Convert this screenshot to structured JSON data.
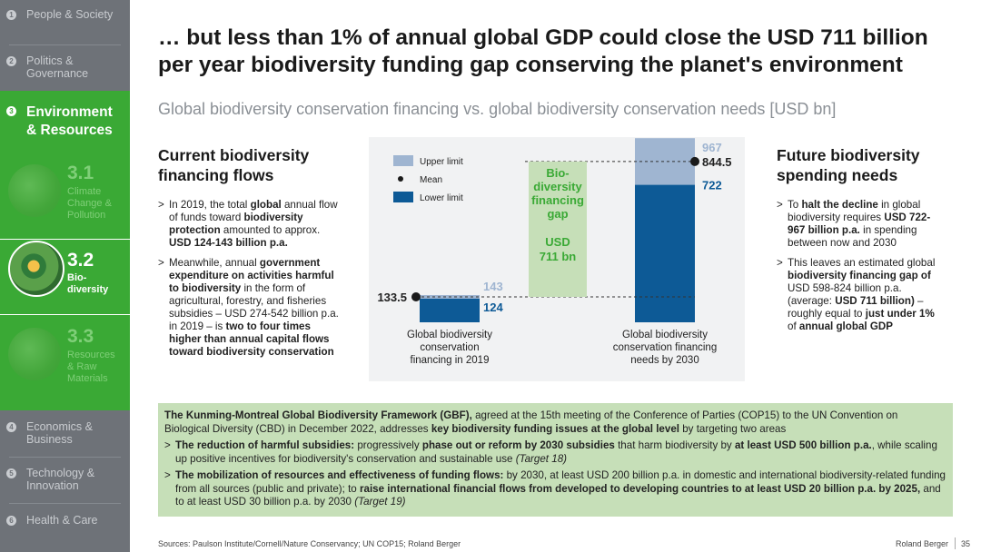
{
  "sidebar": {
    "items": [
      {
        "num": "1",
        "label": "People & Society"
      },
      {
        "num": "2",
        "label": "Politics & Governance"
      },
      {
        "num": "4",
        "label": "Economics & Business"
      },
      {
        "num": "5",
        "label": "Technology & Innovation"
      },
      {
        "num": "6",
        "label": "Health & Care"
      }
    ],
    "active_section": {
      "num": "3",
      "label_line1": "Environment",
      "label_line2": "& Resources"
    },
    "subsections": [
      {
        "num": "3.1",
        "line1": "Climate",
        "line2": "Change &",
        "line3": "Pollution"
      },
      {
        "num": "3.2",
        "line1": "Bio-",
        "line2": "diversity",
        "line3": ""
      },
      {
        "num": "3.3",
        "line1": "Resources",
        "line2": "& Raw",
        "line3": "Materials"
      }
    ]
  },
  "headline_line1": "… but less than 1% of annual global GDP could close the USD 711 billion",
  "headline_line2": "per year biodiversity funding gap conserving the planet's environment",
  "subtitle": "Global biodiversity conservation financing vs. global biodiversity conservation needs [USD bn]",
  "left": {
    "title_line1": "Current biodiversity",
    "title_line2": "financing flows"
  },
  "right": {
    "title_line1": "Future biodiversity",
    "title_line2": "spending needs"
  },
  "chart_data": {
    "type": "bar",
    "categories": [
      "Global biodiversity conservation financing in 2019",
      "Global biodiversity conservation financing needs by 2030"
    ],
    "category_labels": [
      [
        "Global biodiversity",
        "conservation",
        "financing in 2019"
      ],
      [
        "Global biodiversity",
        "conservation financing",
        "needs by 2030"
      ]
    ],
    "series": [
      {
        "name": "Lower limit",
        "values": [
          124,
          722
        ],
        "color": "#0d5a96"
      },
      {
        "name": "Upper limit",
        "values": [
          143,
          967
        ],
        "color": "#9fb5d1"
      },
      {
        "name": "Mean",
        "values": [
          133.5,
          844.5
        ],
        "color": "#1a1a1a"
      }
    ],
    "value_labels": {
      "lower": [
        "124",
        "722"
      ],
      "upper": [
        "143",
        "967"
      ],
      "mean": [
        "133.5",
        "844.5"
      ]
    },
    "gap_label": [
      "Bio-",
      "diversity",
      "financing",
      "gap"
    ],
    "gap_value": [
      "USD",
      "711 bn"
    ],
    "gap_color": "#c6dfb8",
    "ylim": [
      0,
      1000
    ],
    "legend_position": "top-left"
  },
  "gbf": {
    "framework": "The Kunming-Montreal Global Biodiversity Framework (GBF),",
    "intro_a": " agreed at the 15th meeting of the Conference of Parties (COP15) to the UN Convention on Biological Diversity (CBD) in December 2022, addresses ",
    "intro_b": "key biodiversity funding issues at the global level",
    "intro_c": " by targeting two areas",
    "b1_a": "The reduction of harmful subsidies:",
    "b1_b": " progressively ",
    "b1_c": "phase out or reform by 2030 subsidies",
    "b1_d": " that harm biodiversity by ",
    "b1_e": "at least USD 500 billion p.a.",
    "b1_f": ", while scaling up positive incentives for biodiversity's conservation and sustainable use ",
    "b1_g": "(Target 18)",
    "b2_a": "The mobilization of resources and effectiveness of funding flows:",
    "b2_b": " by 2030, at least USD 200 billion p.a. in domestic and international biodiversity-related funding from all sources (public and private); to ",
    "b2_c": "raise international financial flows from developed to developing countries to at least USD 20 billion p.a. by 2025,",
    "b2_d": " and to at least USD 30 billion p.a. by 2030 ",
    "b2_e": "(Target 19)"
  },
  "footer": {
    "sources": "Sources: Paulson Institute/Cornell/Nature Conservancy; UN COP15; Roland Berger",
    "brand": "Roland Berger",
    "page": "35"
  },
  "colors": {
    "sidebar": "#6e7278",
    "accent_green": "#3aa935",
    "light_green": "#c6dfb8"
  }
}
